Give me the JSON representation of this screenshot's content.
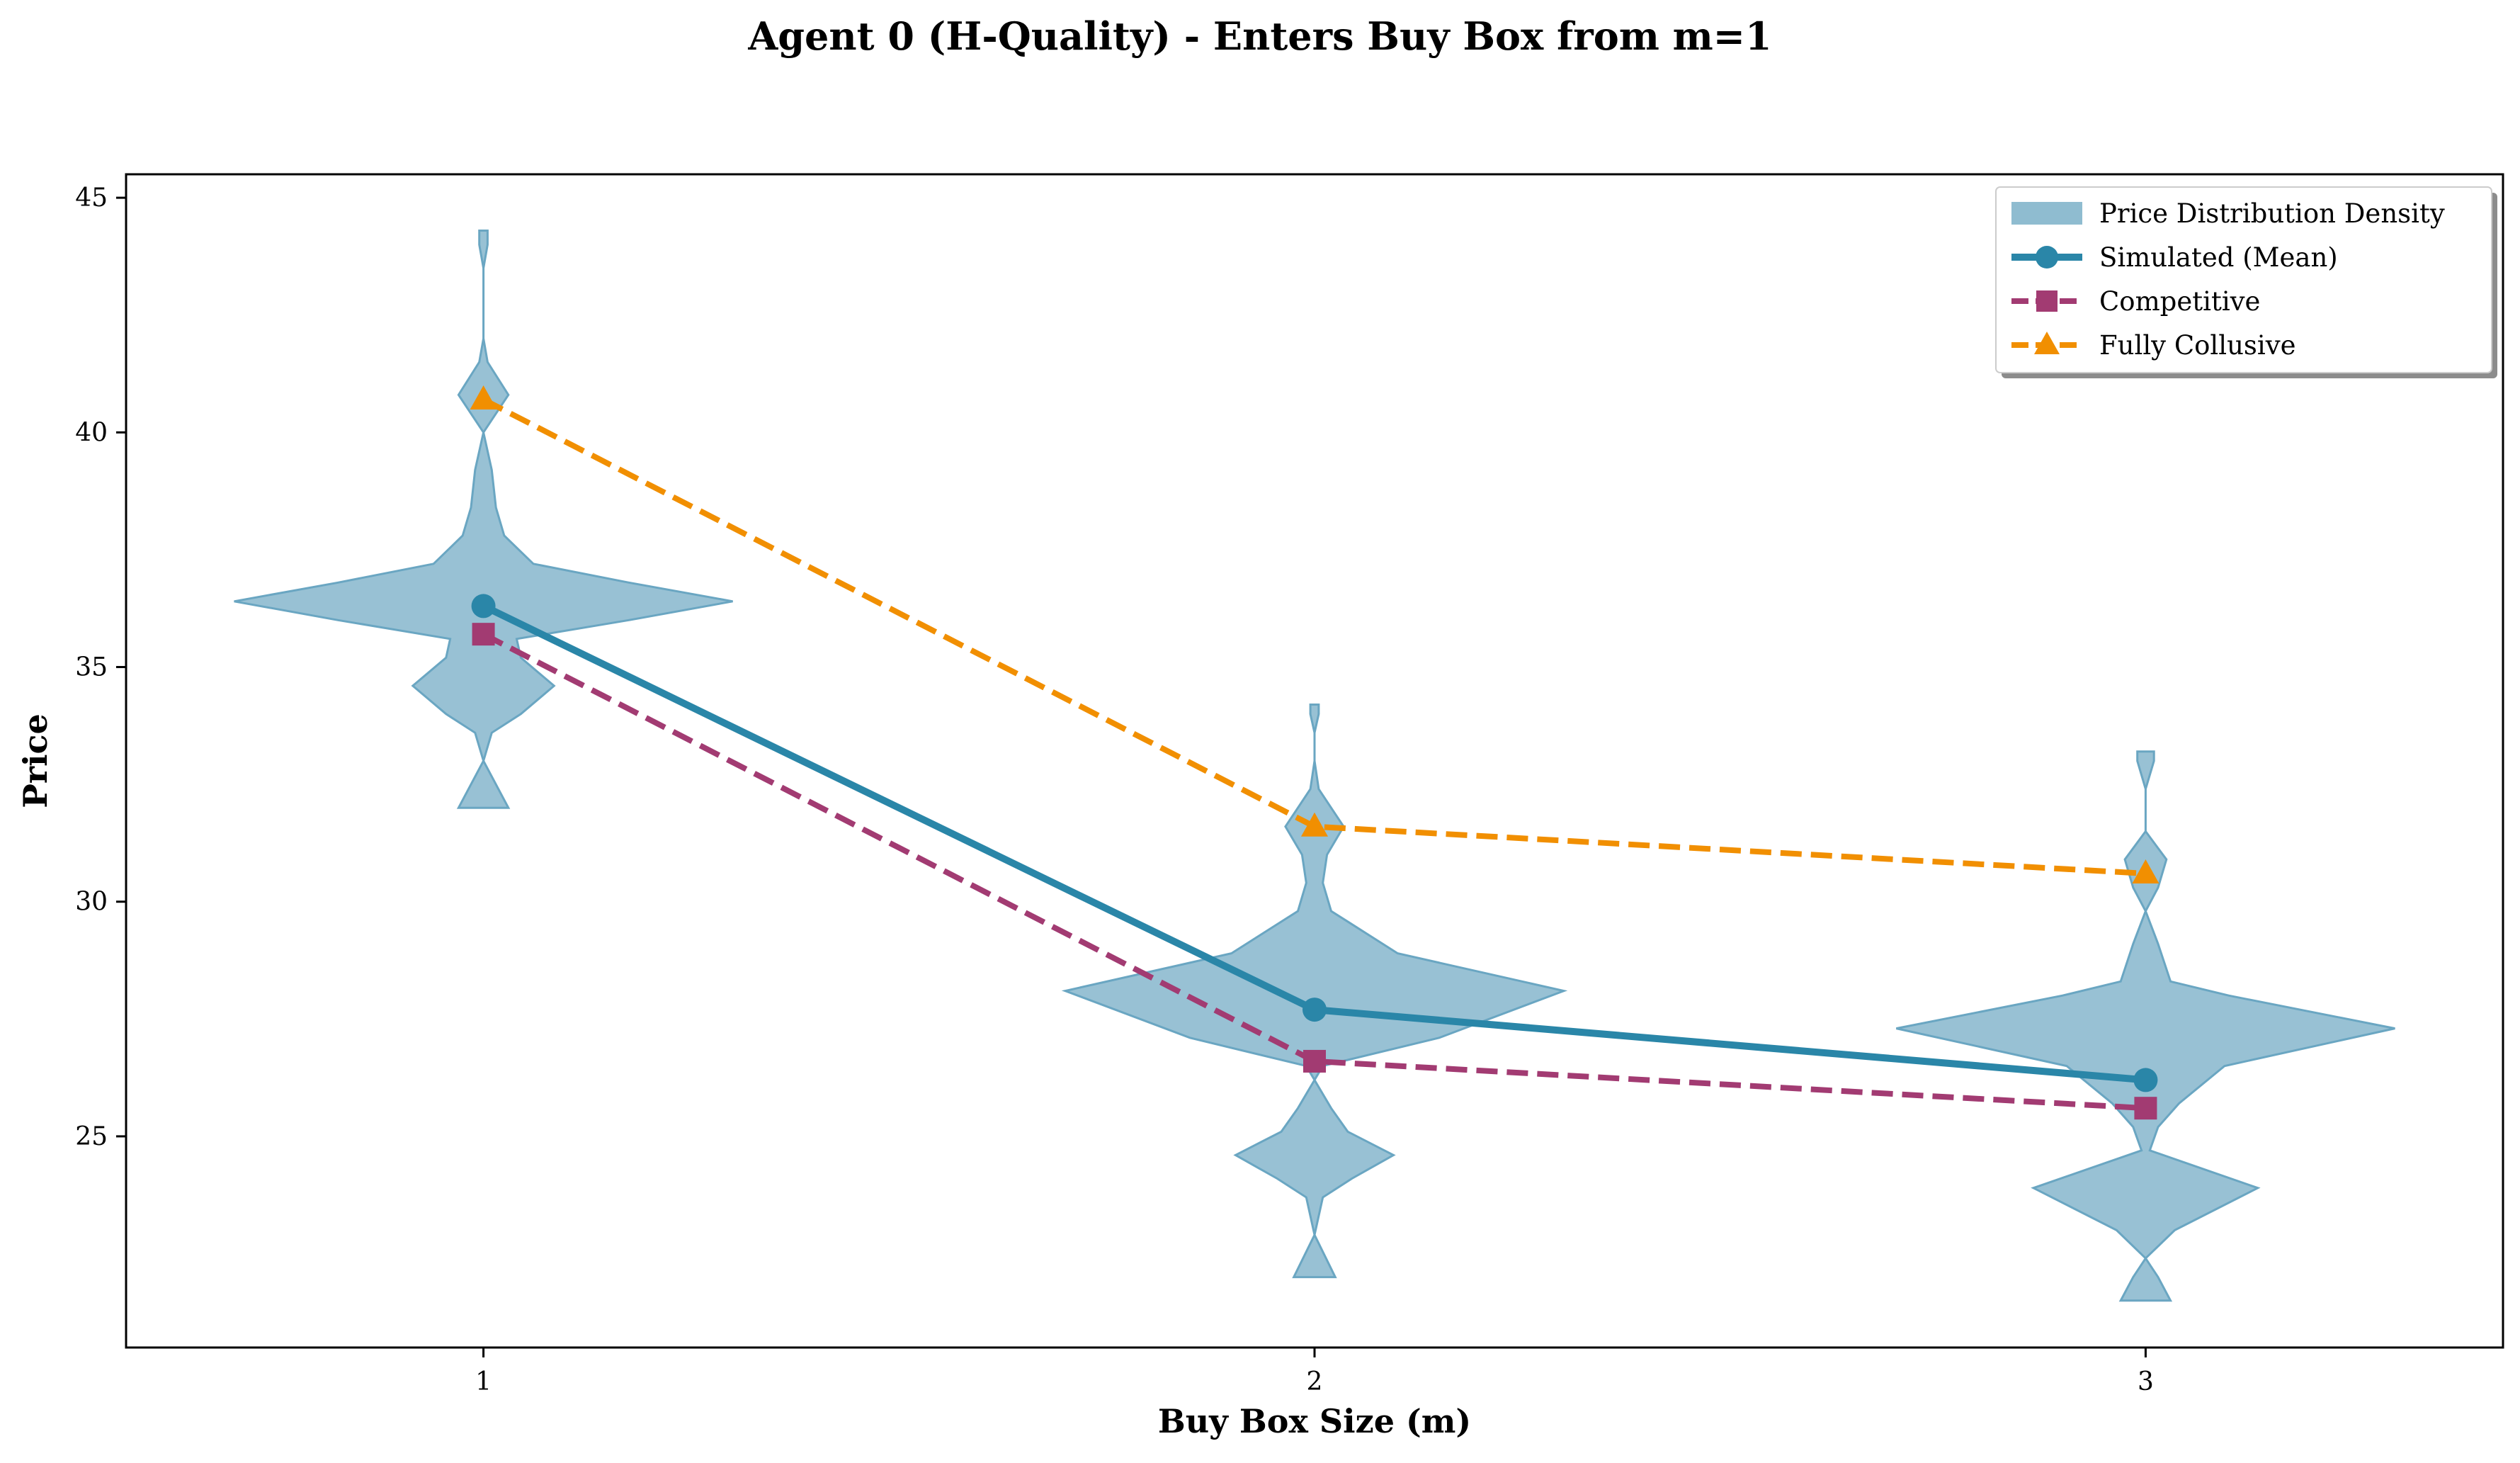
{
  "chart_data": {
    "type": "violin-line",
    "title": "Agent 0 (H-Quality) - Enters Buy Box from m=1",
    "xlabel": "Buy Box Size (m)",
    "ylabel": "Price",
    "x": [
      1,
      2,
      3
    ],
    "xticks": [
      "1",
      "2",
      "3"
    ],
    "yticks": [
      25,
      30,
      35,
      40,
      45
    ],
    "xlim": [
      0.57,
      3.43
    ],
    "ylim": [
      20.5,
      45.5
    ],
    "grid": false,
    "legend_position": "upper right",
    "series": [
      {
        "name": "Simulated (Mean)",
        "values": [
          36.3,
          27.7,
          26.2
        ],
        "color": "#2a86a8",
        "style": "solid",
        "marker": "circle"
      },
      {
        "name": "Competitive",
        "values": [
          35.7,
          26.6,
          25.6
        ],
        "color": "#a23b72",
        "style": "dashed",
        "marker": "square"
      },
      {
        "name": "Fully Collusive",
        "values": [
          40.7,
          31.6,
          30.6
        ],
        "color": "#f18f01",
        "style": "dashed",
        "marker": "triangle"
      }
    ],
    "distribution": {
      "name": "Price Distribution Density",
      "color": "#8fbcd0",
      "edge_color": "#6aa6c2",
      "violins": [
        {
          "x": 1,
          "min": 32.0,
          "max": 44.3,
          "profile": [
            [
              32.0,
              0.06
            ],
            [
              33.0,
              0.0
            ],
            [
              33.6,
              0.02
            ],
            [
              34.0,
              0.09
            ],
            [
              34.6,
              0.17
            ],
            [
              35.2,
              0.09
            ],
            [
              35.6,
              0.08
            ],
            [
              36.0,
              0.35
            ],
            [
              36.4,
              0.6
            ],
            [
              36.8,
              0.35
            ],
            [
              37.2,
              0.12
            ],
            [
              37.8,
              0.05
            ],
            [
              38.4,
              0.03
            ],
            [
              39.2,
              0.02
            ],
            [
              40.0,
              0.0
            ],
            [
              40.8,
              0.06
            ],
            [
              41.5,
              0.01
            ],
            [
              42.0,
              0.0
            ],
            [
              43.5,
              0.0
            ],
            [
              44.0,
              0.01
            ],
            [
              44.3,
              0.01
            ]
          ]
        },
        {
          "x": 2,
          "min": 22.0,
          "max": 34.2,
          "profile": [
            [
              22.0,
              0.05
            ],
            [
              22.9,
              0.0
            ],
            [
              23.7,
              0.02
            ],
            [
              24.1,
              0.09
            ],
            [
              24.6,
              0.19
            ],
            [
              25.1,
              0.08
            ],
            [
              25.6,
              0.04
            ],
            [
              26.2,
              0.0
            ],
            [
              26.5,
              0.02
            ],
            [
              27.1,
              0.3
            ],
            [
              28.1,
              0.6
            ],
            [
              28.9,
              0.2
            ],
            [
              29.8,
              0.04
            ],
            [
              30.4,
              0.02
            ],
            [
              31.0,
              0.03
            ],
            [
              31.6,
              0.07
            ],
            [
              32.4,
              0.01
            ],
            [
              33.0,
              0.0
            ],
            [
              33.6,
              0.0
            ],
            [
              34.0,
              0.01
            ],
            [
              34.2,
              0.01
            ]
          ]
        },
        {
          "x": 3,
          "min": 21.5,
          "max": 33.2,
          "profile": [
            [
              21.5,
              0.06
            ],
            [
              22.0,
              0.03
            ],
            [
              22.4,
              0.0
            ],
            [
              23.0,
              0.07
            ],
            [
              23.9,
              0.27
            ],
            [
              24.7,
              0.01
            ],
            [
              25.2,
              0.03
            ],
            [
              25.7,
              0.08
            ],
            [
              26.5,
              0.19
            ],
            [
              27.3,
              0.6
            ],
            [
              28.0,
              0.2
            ],
            [
              28.3,
              0.06
            ],
            [
              29.1,
              0.03
            ],
            [
              29.8,
              0.0
            ],
            [
              30.3,
              0.03
            ],
            [
              30.9,
              0.05
            ],
            [
              31.5,
              0.0
            ],
            [
              32.4,
              0.0
            ],
            [
              33.0,
              0.02
            ],
            [
              33.2,
              0.02
            ]
          ]
        }
      ]
    }
  }
}
